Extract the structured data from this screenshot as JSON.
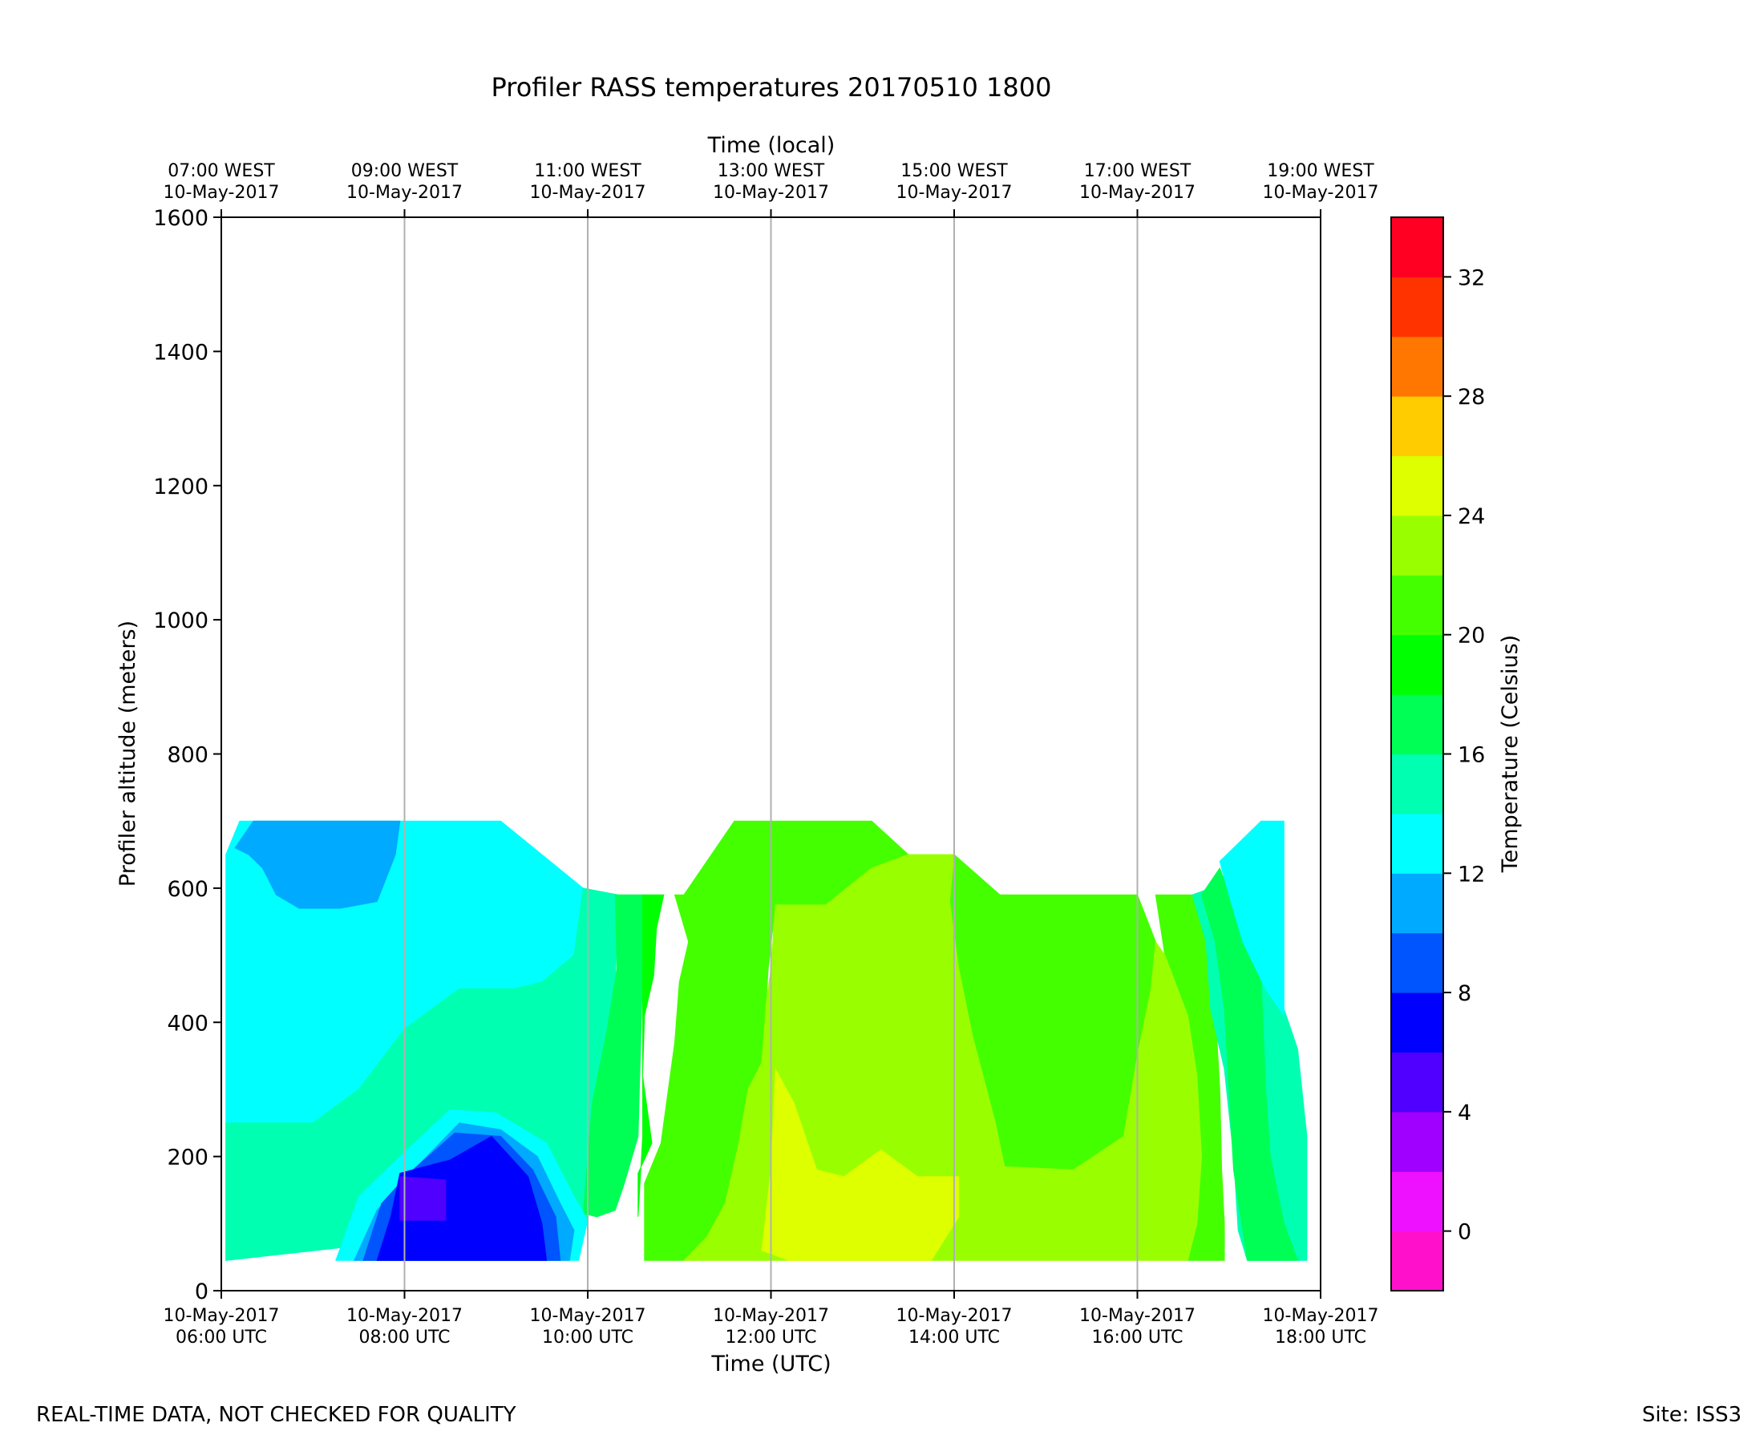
{
  "chart_data": {
    "type": "heatmap",
    "subtype": "filled-contour",
    "title": "Profiler RASS temperatures 20170510 1800",
    "xlabel": "Time (UTC)",
    "xlabel_top": "Time (local)",
    "ylabel": "Profiler altitude (meters)",
    "colorbar_label": "Temperature (Celsius)",
    "x_unit": "hours UTC",
    "xlim": [
      6,
      18
    ],
    "ylim": [
      0,
      1600
    ],
    "x_ticks": [
      6,
      8,
      10,
      12,
      14,
      16,
      18
    ],
    "x_tick_labels": [
      {
        "date": "10-May-2017",
        "time": "06:00 UTC"
      },
      {
        "date": "10-May-2017",
        "time": "08:00 UTC"
      },
      {
        "date": "10-May-2017",
        "time": "10:00 UTC"
      },
      {
        "date": "10-May-2017",
        "time": "12:00 UTC"
      },
      {
        "date": "10-May-2017",
        "time": "14:00 UTC"
      },
      {
        "date": "10-May-2017",
        "time": "16:00 UTC"
      },
      {
        "date": "10-May-2017",
        "time": "18:00 UTC"
      }
    ],
    "x_top_tick_labels": [
      {
        "time": "07:00 WEST",
        "date": "10-May-2017"
      },
      {
        "time": "09:00 WEST",
        "date": "10-May-2017"
      },
      {
        "time": "11:00 WEST",
        "date": "10-May-2017"
      },
      {
        "time": "13:00 WEST",
        "date": "10-May-2017"
      },
      {
        "time": "15:00 WEST",
        "date": "10-May-2017"
      },
      {
        "time": "17:00 WEST",
        "date": "10-May-2017"
      },
      {
        "time": "19:00 WEST",
        "date": "10-May-2017"
      }
    ],
    "y_ticks": [
      "0",
      "200",
      "400",
      "600",
      "800",
      "1000",
      "1200",
      "1400",
      "1600"
    ],
    "colorbar": {
      "range": [
        -2,
        34
      ],
      "step": 2,
      "tick_values": [
        0,
        4,
        8,
        12,
        16,
        20,
        24,
        28,
        32
      ],
      "tick_labels": [
        "0",
        "4",
        "8",
        "12",
        "16",
        "20",
        "24",
        "28",
        "32"
      ],
      "colors": [
        "#ff11cc",
        "#ee11ff",
        "#a000ff",
        "#5000ff",
        "#0000ff",
        "#0055ff",
        "#00aaff",
        "#00ffff",
        "#00ffb0",
        "#00ff55",
        "#00ff00",
        "#44ff00",
        "#99ff00",
        "#ddff00",
        "#ffcc00",
        "#ff7700",
        "#ff3300",
        "#ff0022"
      ]
    },
    "grid": "vertical-only",
    "regions": [
      {
        "name": "cyan-band",
        "level": "12-14 C",
        "color": "#00ffff",
        "pts": [
          [
            6.05,
            45
          ],
          [
            6.05,
            650
          ],
          [
            6.2,
            700
          ],
          [
            9.05,
            700
          ],
          [
            9.95,
            600
          ],
          [
            9.85,
            500
          ],
          [
            9.5,
            460
          ],
          [
            9.2,
            450
          ],
          [
            8.6,
            450
          ],
          [
            8,
            390
          ],
          [
            7.5,
            300
          ],
          [
            7.0,
            250
          ],
          [
            6.05,
            250
          ]
        ]
      },
      {
        "name": "blue-cap",
        "level": "10-12 C",
        "color": "#00aaff",
        "pts": [
          [
            6.15,
            660
          ],
          [
            6.35,
            700
          ],
          [
            7.95,
            700
          ],
          [
            7.9,
            650
          ],
          [
            7.7,
            580
          ],
          [
            7.3,
            570
          ],
          [
            6.85,
            570
          ],
          [
            6.6,
            590
          ],
          [
            6.45,
            630
          ],
          [
            6.3,
            650
          ]
        ]
      },
      {
        "name": "teal-band",
        "level": "14-16 C",
        "color": "#00ffb0",
        "pts": [
          [
            6.05,
            45
          ],
          [
            6.05,
            250
          ],
          [
            7.0,
            250
          ],
          [
            7.5,
            300
          ],
          [
            8,
            390
          ],
          [
            8.6,
            450
          ],
          [
            9.2,
            450
          ],
          [
            9.5,
            460
          ],
          [
            9.85,
            500
          ],
          [
            9.95,
            600
          ],
          [
            10.33,
            590
          ],
          [
            10.3,
            450
          ],
          [
            10.1,
            280
          ],
          [
            10.05,
            190
          ],
          [
            10.0,
            105
          ],
          [
            6.05,
            45
          ]
        ]
      },
      {
        "name": "green-16-18",
        "level": "16-18 C",
        "color": "#00ff55",
        "pts": [
          [
            9.95,
            115
          ],
          [
            10.05,
            280
          ],
          [
            10.2,
            380
          ],
          [
            10.32,
            480
          ],
          [
            10.3,
            590
          ],
          [
            10.6,
            590
          ],
          [
            10.6,
            480
          ],
          [
            10.55,
            230
          ],
          [
            10.4,
            160
          ],
          [
            10.3,
            120
          ],
          [
            10.1,
            110
          ]
        ]
      },
      {
        "name": "green-18-20",
        "level": "18-20 C",
        "color": "#00ff00",
        "pts": [
          [
            10.55,
            110
          ],
          [
            10.6,
            230
          ],
          [
            10.6,
            480
          ],
          [
            10.6,
            590
          ],
          [
            10.83,
            590
          ],
          [
            10.75,
            540
          ],
          [
            10.72,
            470
          ],
          [
            10.62,
            410
          ],
          [
            10.6,
            320
          ],
          [
            10.7,
            220
          ],
          [
            10.55,
            175
          ]
        ]
      },
      {
        "name": "green-20-22-a",
        "level": "20-22 C",
        "color": "#44ff00",
        "pts": [
          [
            10.62,
            50
          ],
          [
            10.62,
            160
          ],
          [
            10.8,
            220
          ],
          [
            10.95,
            370
          ],
          [
            11.0,
            460
          ],
          [
            11.1,
            520
          ],
          [
            10.95,
            590
          ],
          [
            11.05,
            590
          ],
          [
            11.6,
            700
          ],
          [
            12.0,
            700
          ],
          [
            13.1,
            700
          ],
          [
            13.5,
            650
          ],
          [
            12.6,
            575
          ],
          [
            12.05,
            575
          ],
          [
            11.97,
            480
          ],
          [
            11.9,
            330
          ],
          [
            11.8,
            250
          ],
          [
            11.7,
            200
          ],
          [
            11.6,
            120
          ],
          [
            11.3,
            80
          ],
          [
            11.05,
            45
          ],
          [
            10.62,
            45
          ]
        ]
      },
      {
        "name": "green-20-22-b",
        "level": "20-22 C",
        "color": "#44ff00",
        "pts": [
          [
            14.0,
            650
          ],
          [
            14.5,
            590
          ],
          [
            16.0,
            590
          ],
          [
            16.2,
            520
          ],
          [
            16.15,
            450
          ],
          [
            16.0,
            350
          ],
          [
            15.85,
            230
          ],
          [
            15.3,
            180
          ],
          [
            14.55,
            185
          ],
          [
            14.45,
            250
          ],
          [
            14.2,
            380
          ],
          [
            14.05,
            480
          ],
          [
            13.95,
            580
          ]
        ]
      },
      {
        "name": "green-20-22-c",
        "level": "20-22 C",
        "color": "#44ff00",
        "pts": [
          [
            16.2,
            590
          ],
          [
            16.6,
            590
          ],
          [
            16.75,
            520
          ],
          [
            16.85,
            420
          ],
          [
            16.9,
            300
          ],
          [
            16.92,
            180
          ],
          [
            16.95,
            100
          ],
          [
            16.95,
            45
          ],
          [
            16.55,
            45
          ],
          [
            16.65,
            100
          ],
          [
            16.7,
            200
          ],
          [
            16.65,
            320
          ],
          [
            16.55,
            410
          ],
          [
            16.3,
            500
          ]
        ]
      },
      {
        "name": "yellow-green-main",
        "level": "22-24 C",
        "color": "#99ff00",
        "pts": [
          [
            11.05,
            45
          ],
          [
            11.3,
            80
          ],
          [
            11.5,
            130
          ],
          [
            11.65,
            220
          ],
          [
            11.75,
            300
          ],
          [
            11.9,
            340
          ],
          [
            11.95,
            430
          ],
          [
            12.0,
            480
          ],
          [
            12.05,
            575
          ],
          [
            12.6,
            575
          ],
          [
            13.1,
            630
          ],
          [
            13.5,
            650
          ],
          [
            14.0,
            650
          ],
          [
            13.95,
            580
          ],
          [
            14.05,
            480
          ],
          [
            14.2,
            380
          ],
          [
            14.45,
            250
          ],
          [
            14.55,
            185
          ],
          [
            15.3,
            180
          ],
          [
            15.85,
            230
          ],
          [
            16.0,
            350
          ],
          [
            16.15,
            450
          ],
          [
            16.2,
            520
          ],
          [
            16.3,
            500
          ],
          [
            16.55,
            410
          ],
          [
            16.65,
            320
          ],
          [
            16.7,
            200
          ],
          [
            16.65,
            100
          ],
          [
            16.55,
            45
          ]
        ]
      },
      {
        "name": "green-pocket",
        "level": "20-22 C",
        "color": "#44ff00",
        "pts": [
          [
            11.2,
            560
          ],
          [
            11.3,
            600
          ],
          [
            11.45,
            590
          ],
          [
            11.4,
            520
          ]
        ]
      },
      {
        "name": "yellow-hot",
        "level": "24-26 C",
        "color": "#ddff00",
        "pts": [
          [
            11.9,
            60
          ],
          [
            12.0,
            180
          ],
          [
            12.05,
            330
          ],
          [
            12.25,
            280
          ],
          [
            12.5,
            180
          ],
          [
            12.8,
            170
          ],
          [
            13.2,
            210
          ],
          [
            13.6,
            170
          ],
          [
            14.05,
            170
          ],
          [
            14.05,
            110
          ],
          [
            13.75,
            45
          ],
          [
            12.2,
            45
          ]
        ]
      },
      {
        "name": "east-teal",
        "level": "14-16 C",
        "color": "#00ffb0",
        "pts": [
          [
            17.0,
            610
          ],
          [
            17.55,
            520
          ],
          [
            17.6,
            420
          ],
          [
            17.75,
            360
          ],
          [
            17.85,
            230
          ],
          [
            17.85,
            100
          ],
          [
            17.85,
            45
          ],
          [
            17.2,
            45
          ],
          [
            17.1,
            90
          ],
          [
            17.05,
            200
          ],
          [
            16.95,
            330
          ],
          [
            16.8,
            420
          ],
          [
            16.75,
            520
          ],
          [
            16.6,
            590
          ]
        ]
      },
      {
        "name": "east-green",
        "level": "18-20 C",
        "color": "#00ff55",
        "pts": [
          [
            17.2,
            45
          ],
          [
            17.05,
            180
          ],
          [
            17.0,
            300
          ],
          [
            16.95,
            420
          ],
          [
            16.85,
            520
          ],
          [
            16.7,
            590
          ],
          [
            16.9,
            630
          ],
          [
            17.35,
            470
          ],
          [
            17.4,
            300
          ],
          [
            17.45,
            200
          ],
          [
            17.6,
            100
          ],
          [
            17.75,
            45
          ]
        ]
      },
      {
        "name": "east-cyan",
        "level": "12-14 C",
        "color": "#00ffff",
        "pts": [
          [
            16.9,
            640
          ],
          [
            17.35,
            700
          ],
          [
            17.6,
            700
          ],
          [
            17.6,
            410
          ],
          [
            17.4,
            450
          ],
          [
            17.15,
            520
          ],
          [
            17.0,
            590
          ]
        ]
      },
      {
        "name": "cold-ring-1",
        "level": "12-14 C",
        "color": "#00ffff",
        "pts": [
          [
            7.25,
            45
          ],
          [
            7.5,
            140
          ],
          [
            7.95,
            200
          ],
          [
            8.5,
            270
          ],
          [
            9.0,
            265
          ],
          [
            9.55,
            220
          ],
          [
            9.85,
            140
          ],
          [
            10.0,
            105
          ],
          [
            9.9,
            45
          ]
        ]
      },
      {
        "name": "cold-ring-2",
        "level": "10-12 C",
        "color": "#00aaff",
        "pts": [
          [
            7.45,
            45
          ],
          [
            7.7,
            120
          ],
          [
            8.1,
            180
          ],
          [
            8.6,
            250
          ],
          [
            9.05,
            240
          ],
          [
            9.45,
            200
          ],
          [
            9.7,
            130
          ],
          [
            9.85,
            90
          ],
          [
            9.8,
            45
          ]
        ]
      },
      {
        "name": "cold-ring-3",
        "level": "8-10 C",
        "color": "#0055ff",
        "pts": [
          [
            7.55,
            45
          ],
          [
            7.75,
            130
          ],
          [
            8.05,
            175
          ],
          [
            8.55,
            235
          ],
          [
            9.05,
            230
          ],
          [
            9.4,
            180
          ],
          [
            9.65,
            110
          ],
          [
            9.7,
            45
          ]
        ]
      },
      {
        "name": "cold-core",
        "level": "6-8 C",
        "color": "#0000ff",
        "pts": [
          [
            7.7,
            45
          ],
          [
            7.85,
            110
          ],
          [
            7.95,
            175
          ],
          [
            8.5,
            195
          ],
          [
            8.95,
            230
          ],
          [
            9.35,
            170
          ],
          [
            9.5,
            100
          ],
          [
            9.55,
            45
          ]
        ]
      },
      {
        "name": "cold-purple",
        "level": "4-6 C",
        "color": "#5000ff",
        "pts": [
          [
            7.95,
            105
          ],
          [
            7.95,
            170
          ],
          [
            8.45,
            165
          ],
          [
            8.45,
            105
          ]
        ]
      }
    ]
  },
  "footer": {
    "left": "REAL-TIME DATA, NOT CHECKED FOR QUALITY",
    "right": "Site: ISS3"
  }
}
